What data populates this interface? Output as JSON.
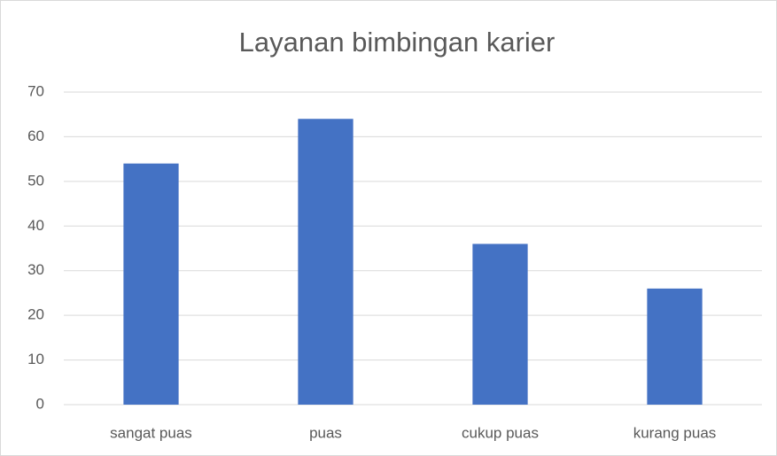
{
  "chart_data": {
    "type": "bar",
    "title": "Layanan bimbingan karier",
    "categories": [
      "sangat puas",
      "puas",
      "cukup puas",
      "kurang puas"
    ],
    "values": [
      54,
      64,
      36,
      26
    ],
    "color": "#4472c4",
    "ylim": [
      0,
      70
    ],
    "yticks": [
      0,
      10,
      20,
      30,
      40,
      50,
      60,
      70
    ],
    "grid": true
  }
}
